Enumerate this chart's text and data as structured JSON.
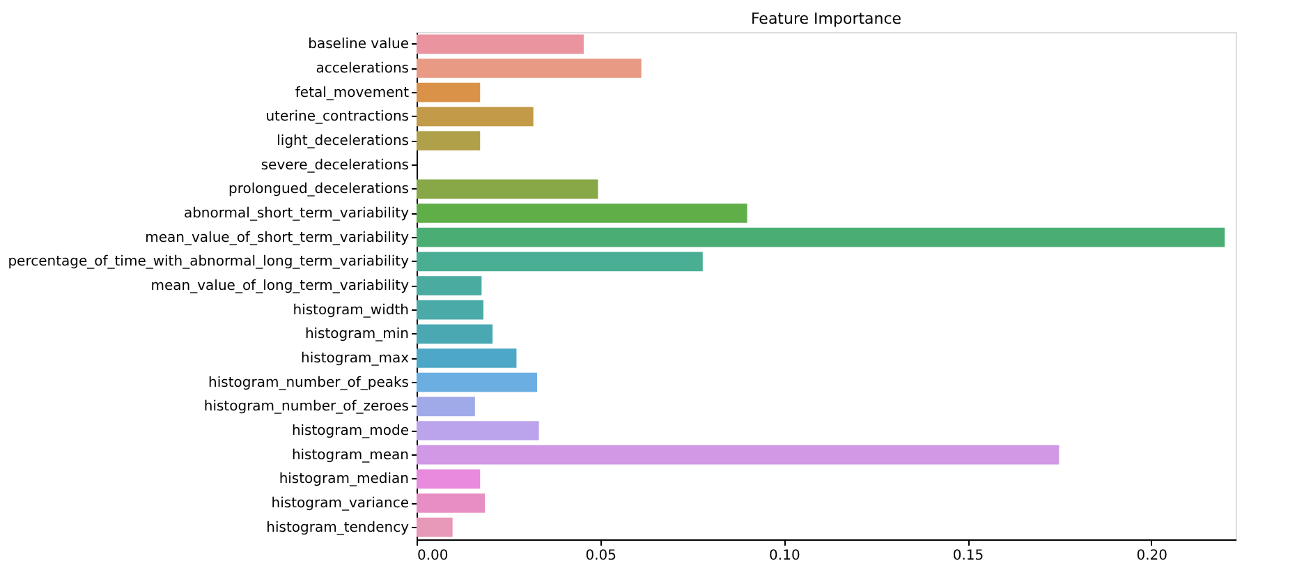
{
  "chart_data": {
    "type": "bar",
    "orientation": "horizontal",
    "title": "Feature Importance",
    "categories": [
      "baseline value",
      "accelerations",
      "fetal_movement",
      "uterine_contractions",
      "light_decelerations",
      "severe_decelerations",
      "prolongued_decelerations",
      "abnormal_short_term_variability",
      "mean_value_of_short_term_variability",
      "percentage_of_time_with_abnormal_long_term_variability",
      "mean_value_of_long_term_variability",
      "histogram_width",
      "histogram_min",
      "histogram_max",
      "histogram_number_of_peaks",
      "histogram_number_of_zeroes",
      "histogram_mode",
      "histogram_mean",
      "histogram_median",
      "histogram_variance",
      "histogram_tendency"
    ],
    "values": [
      0.0455,
      0.0612,
      0.0173,
      0.0318,
      0.0173,
      0,
      0.0494,
      0.09,
      0.22,
      0.0779,
      0.0177,
      0.0182,
      0.0207,
      0.0272,
      0.0328,
      0.0159,
      0.0333,
      0.1749,
      0.0173,
      0.0186,
      0.0098
    ],
    "colors": [
      "#e9949f",
      "#e89a85",
      "#da9248",
      "#c29a48",
      "#b0a04a",
      "#9ca64a",
      "#88a848",
      "#5fae48",
      "#4aae74",
      "#4aae94",
      "#4aaba0",
      "#4aaaa7",
      "#4aa8b2",
      "#4da7c6",
      "#6aaee2",
      "#a1aae8",
      "#bba4ec",
      "#d198e6",
      "#e88ade",
      "#e78fc4",
      "#e898b8"
    ],
    "xlim": [
      0,
      0.223
    ],
    "xticks": [
      {
        "value": 0,
        "label": "0.00"
      },
      {
        "value": 0.05,
        "label": "0.05"
      },
      {
        "value": 0.1,
        "label": "0.10"
      },
      {
        "value": 0.15,
        "label": "0.15"
      },
      {
        "value": 0.2,
        "label": "0.20"
      }
    ],
    "grid": false,
    "legend": false
  }
}
